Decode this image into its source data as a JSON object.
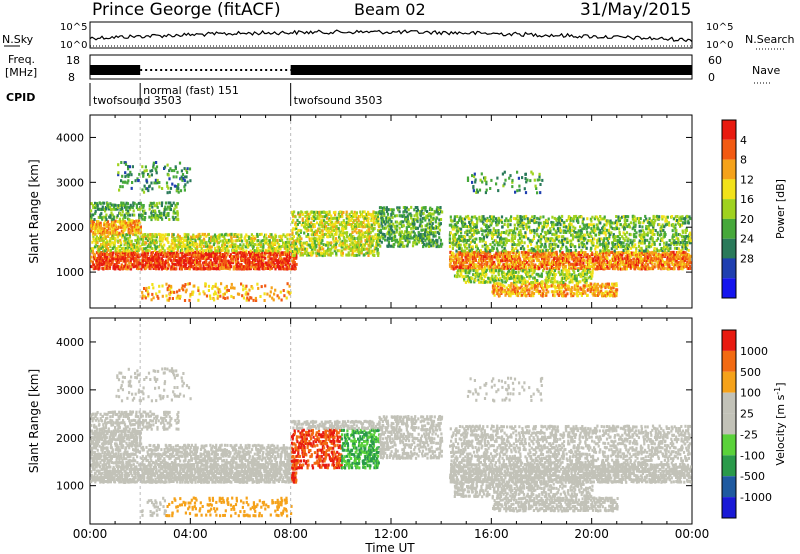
{
  "header": {
    "station": "Prince George (fitACF)",
    "beam": "Beam 02",
    "date": "31/May/2015"
  },
  "sky_panel": {
    "left_label": "N.Sky",
    "right_label": "N.Search",
    "left_ticks": [
      "10^5",
      "10^0"
    ],
    "right_ticks": [
      "10^5",
      "10^0"
    ]
  },
  "freq_panel": {
    "left_label_1": "Freq.",
    "left_label_2": "[MHz]",
    "left_ticks": [
      "18",
      "8"
    ],
    "right_label": "Nave",
    "right_ticks": [
      "60",
      "0"
    ]
  },
  "cpid": {
    "label": "CPID",
    "segments": [
      {
        "start_hour": 0,
        "end_hour": 2,
        "text": "twofsound 3503"
      },
      {
        "start_hour": 2,
        "end_hour": 8,
        "text": "normal (fast) 151"
      },
      {
        "start_hour": 8,
        "end_hour": 24,
        "text": "twofsound 3503"
      }
    ]
  },
  "chart_data": [
    {
      "type": "heatmap",
      "name": "power",
      "ylabel": "Slant Range [km]",
      "y_ticks": [
        "1000",
        "2000",
        "3000",
        "4000"
      ],
      "ylim": [
        200,
        4500
      ],
      "colorbar_label": "Power [dB]",
      "colorbar_ticks": [
        "4",
        "8",
        "12",
        "16",
        "20",
        "24",
        "28"
      ],
      "colorbar_colors": [
        "#1515ee",
        "#1f3fb0",
        "#2a7a5a",
        "#46a83a",
        "#9fd21f",
        "#f2e21a",
        "#f5a21a",
        "#f25a12",
        "#e81a10"
      ]
    },
    {
      "type": "heatmap",
      "name": "velocity",
      "ylabel": "Slant Range [km]",
      "y_ticks": [
        "1000",
        "2000",
        "3000",
        "4000"
      ],
      "ylim": [
        200,
        4500
      ],
      "xlabel": "Time UT",
      "x_ticks": [
        "00:00",
        "04:00",
        "08:00",
        "12:00",
        "16:00",
        "20:00",
        "00:00"
      ],
      "xlim": [
        0,
        24
      ],
      "colorbar_label": "Velocity [m s",
      "colorbar_label_sup": "-1",
      "colorbar_label_end": "]",
      "colorbar_ticks": [
        "1000",
        "500",
        "100",
        "25",
        "-25",
        "-100",
        "-500",
        "-1000"
      ],
      "colorbar_colors": [
        "#1a1ad6",
        "#1f5aa0",
        "#2a9a4a",
        "#5ad23a",
        "#c2c2b8",
        "#c2c2b8",
        "#f5a21a",
        "#f26a12",
        "#e81a10"
      ]
    }
  ]
}
